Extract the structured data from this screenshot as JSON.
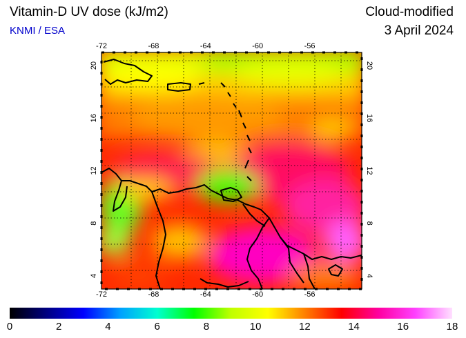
{
  "header": {
    "title": "Vitamin-D UV dose (kJ/m2)",
    "source": "KNMI / ESA",
    "mode": "Cloud-modified",
    "date": "3 April 2024"
  },
  "map": {
    "lon_range": [
      -72,
      -52
    ],
    "lat_range": [
      3,
      21
    ],
    "lon_ticks": [
      "-72",
      "-68",
      "-64",
      "-60",
      "-56"
    ],
    "lat_ticks": [
      "4",
      "8",
      "12",
      "16",
      "20"
    ],
    "grid": "dotted, 2 degree spacing",
    "coastline_color": "#000000"
  },
  "colorbar": {
    "min": 0,
    "max": 18,
    "labels": [
      "0",
      "2",
      "4",
      "6",
      "8",
      "10",
      "12",
      "14",
      "16",
      "18"
    ],
    "stops": [
      "#000000",
      "#000080",
      "#0000ff",
      "#00a0ff",
      "#00ffd0",
      "#00ff00",
      "#c0ff00",
      "#ffff00",
      "#ff8000",
      "#ff0000",
      "#ff00a0",
      "#ff40ff",
      "#ffe0ff"
    ]
  }
}
